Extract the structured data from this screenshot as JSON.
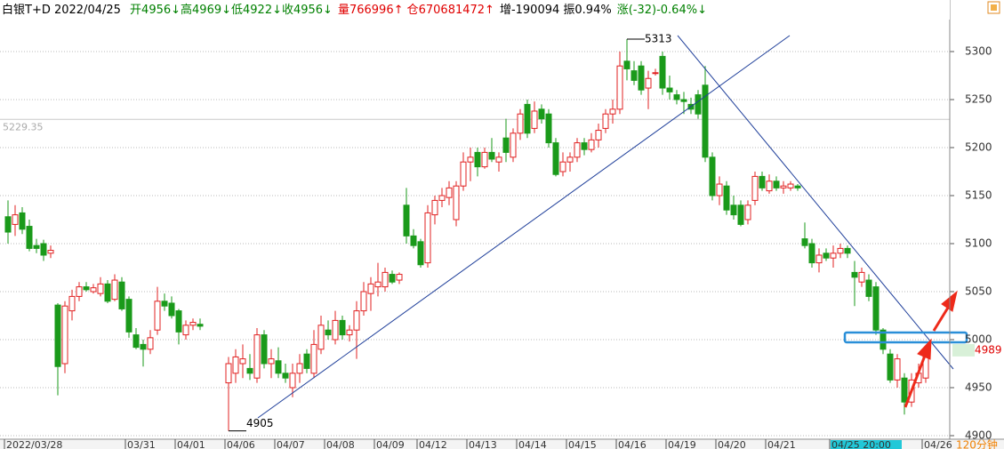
{
  "chart_data": {
    "type": "candlestick",
    "title": "白银T+D 2022/04/25",
    "info": [
      {
        "text": "开4956↓高4969↓低4922↓收4956↓",
        "color": "#008000"
      },
      {
        "text": "量766996↑ 仓670681472↑",
        "color": "#e00000"
      },
      {
        "text": "增-190094 振0.94%",
        "color": "#000000"
      },
      {
        "text": "涨(-32)-0.64%↓",
        "color": "#008000"
      }
    ],
    "period": "120分钟",
    "up_color": "#e02020",
    "down_color": "#1a9a1a",
    "ylim": [
      4896.3,
      5353.7
    ],
    "yticks": [
      4900,
      4950,
      5000,
      5050,
      5100,
      5150,
      5200,
      5250,
      5300
    ],
    "grid": true,
    "ref_line": 5229.35,
    "last_price": 4989,
    "extreme_labels": [
      5313,
      4905
    ],
    "categories": [
      "2022/03/28",
      null,
      null,
      null,
      null,
      null,
      null,
      null,
      null,
      null,
      null,
      null,
      null,
      null,
      null,
      null,
      null,
      "03/31",
      null,
      null,
      null,
      null,
      null,
      null,
      "04/01",
      null,
      null,
      null,
      null,
      null,
      null,
      "04/06",
      null,
      null,
      null,
      null,
      null,
      null,
      "04/07",
      null,
      null,
      null,
      null,
      null,
      null,
      "04/08",
      null,
      null,
      null,
      null,
      null,
      null,
      "04/09",
      null,
      null,
      null,
      null,
      null,
      "04/12",
      null,
      null,
      null,
      null,
      null,
      null,
      "04/13",
      null,
      null,
      null,
      null,
      null,
      null,
      "04/14",
      null,
      null,
      null,
      null,
      null,
      null,
      "04/15",
      null,
      null,
      null,
      null,
      null,
      null,
      "04/16",
      null,
      null,
      null,
      null,
      null,
      null,
      "04/19",
      null,
      null,
      null,
      null,
      null,
      null,
      "04/20",
      null,
      null,
      null,
      null,
      null,
      null,
      "04/21",
      null,
      null,
      null,
      null,
      null,
      null,
      null,
      null,
      "04/25 20:00",
      null,
      null,
      null,
      null,
      null,
      null,
      null,
      null,
      null,
      null,
      null,
      null,
      "04/26"
    ],
    "open": [
      5128,
      5120,
      5132,
      5118,
      5098,
      5100,
      5090,
      5036,
      4975,
      5030,
      5045,
      5055,
      5050,
      5048,
      5058,
      5042,
      5060,
      5042,
      5005,
      4995,
      4990,
      5010,
      5040,
      5038,
      5030,
      5005,
      5015,
      5016,
      null,
      null,
      null,
      4955,
      4965,
      4975,
      4970,
      4960,
      5005,
      4975,
      4978,
      4965,
      4950,
      4965,
      4985,
      4965,
      4990,
      5010,
      5000,
      5020,
      5005,
      5010,
      5030,
      5048,
      5055,
      5055,
      5068,
      5062,
      5140,
      5108,
      5102,
      5080,
      5130,
      5145,
      5148,
      5125,
      5160,
      5185,
      5195,
      5180,
      5195,
      5185,
      5210,
      5190,
      5215,
      5245,
      5220,
      5240,
      5235,
      5205,
      5175,
      5185,
      5190,
      5205,
      5198,
      5208,
      5220,
      5235,
      5240,
      5290,
      5280,
      5285,
      5262,
      5278,
      5295,
      5262,
      5255,
      5250,
      5245,
      5255,
      5265,
      5190,
      5150,
      5160,
      5140,
      5140,
      5125,
      5145,
      5170,
      5155,
      5165,
      5158,
      5158,
      5160,
      5105,
      5100,
      5080,
      5090,
      5085,
      5090,
      5095,
      5070,
      5060,
      5062,
      5055,
      5010,
      4985,
      4958,
      4960,
      4935,
      4955,
      4960
    ],
    "high": [
      5145,
      5140,
      5138,
      5125,
      5105,
      5104,
      5098,
      5038,
      5040,
      5052,
      5060,
      5060,
      5058,
      5065,
      5062,
      5068,
      5065,
      5045,
      5012,
      5000,
      5010,
      5055,
      5048,
      5045,
      5032,
      5020,
      5022,
      5022,
      null,
      null,
      null,
      4982,
      4990,
      4995,
      4985,
      5012,
      5010,
      4990,
      4992,
      4975,
      4975,
      4985,
      4990,
      5010,
      5025,
      5020,
      5030,
      5025,
      5015,
      5040,
      5060,
      5065,
      5080,
      5075,
      5072,
      5070,
      5158,
      5115,
      5105,
      5140,
      5150,
      5158,
      5165,
      5165,
      5195,
      5200,
      5200,
      5200,
      5210,
      5195,
      5230,
      5220,
      5240,
      5250,
      5248,
      5245,
      5240,
      5210,
      5195,
      5195,
      5210,
      5210,
      5215,
      5225,
      5240,
      5250,
      5300,
      5313,
      5290,
      5290,
      5280,
      5282,
      5300,
      5275,
      5260,
      5258,
      5252,
      5260,
      5285,
      5195,
      5170,
      5165,
      5150,
      5145,
      5145,
      5175,
      5175,
      5172,
      5170,
      5165,
      5165,
      5162,
      5122,
      5105,
      5095,
      5095,
      5098,
      5100,
      5098,
      5082,
      5075,
      5068,
      5060,
      5012,
      4990,
      4985,
      4965,
      4965,
      4975,
      4992
    ],
    "low": [
      5100,
      5108,
      5110,
      5092,
      5090,
      5082,
      5085,
      4942,
      4965,
      5020,
      5040,
      5050,
      5048,
      5045,
      5038,
      5040,
      5030,
      5002,
      4990,
      4972,
      4985,
      5005,
      5030,
      5022,
      4995,
      5000,
      5010,
      5010,
      null,
      null,
      null,
      4905,
      4955,
      4960,
      4958,
      4955,
      4970,
      4960,
      4960,
      4955,
      4940,
      4955,
      4965,
      4960,
      4985,
      5000,
      4995,
      5000,
      4998,
      4980,
      5025,
      5030,
      5045,
      5050,
      5058,
      5058,
      5100,
      5095,
      5075,
      5075,
      5120,
      5138,
      5140,
      5118,
      5155,
      5165,
      5170,
      5178,
      5185,
      5175,
      5185,
      5185,
      5208,
      5210,
      5215,
      5225,
      5200,
      5170,
      5170,
      5175,
      5185,
      5192,
      5195,
      5200,
      5215,
      5225,
      5235,
      5270,
      5265,
      5255,
      5240,
      5275,
      5255,
      5250,
      5245,
      5235,
      5235,
      5230,
      5185,
      5145,
      5140,
      5130,
      5125,
      5118,
      5120,
      5140,
      5155,
      5152,
      5155,
      5152,
      5155,
      5155,
      5095,
      5075,
      5070,
      5082,
      5075,
      5085,
      5085,
      5035,
      5055,
      5040,
      5005,
      4985,
      4955,
      4950,
      4922,
      4930,
      4950,
      4955
    ],
    "close": [
      5112,
      5130,
      5115,
      5095,
      5095,
      5088,
      5093,
      4972,
      5035,
      5045,
      5055,
      5052,
      5054,
      5058,
      5040,
      5062,
      5032,
      5008,
      4992,
      4990,
      5002,
      5040,
      5035,
      5025,
      5008,
      5015,
      5018,
      5014,
      null,
      null,
      null,
      4975,
      4982,
      4980,
      4965,
      5005,
      4975,
      4980,
      4965,
      4960,
      4965,
      4975,
      4970,
      4995,
      5015,
      5005,
      5020,
      5005,
      5010,
      5030,
      5050,
      5058,
      5060,
      5070,
      5060,
      5068,
      5108,
      5098,
      5078,
      5132,
      5145,
      5150,
      5158,
      5160,
      5185,
      5190,
      5180,
      5195,
      5188,
      5190,
      5195,
      5215,
      5235,
      5215,
      5238,
      5230,
      5205,
      5172,
      5185,
      5190,
      5205,
      5198,
      5208,
      5218,
      5235,
      5240,
      5285,
      5282,
      5270,
      5260,
      5272,
      5278,
      5262,
      5258,
      5250,
      5248,
      5240,
      5235,
      5190,
      5150,
      5162,
      5135,
      5130,
      5120,
      5140,
      5170,
      5158,
      5165,
      5158,
      5160,
      5162,
      5158,
      5098,
      5080,
      5088,
      5085,
      5090,
      5095,
      5090,
      5065,
      5070,
      5045,
      5010,
      4990,
      4958,
      4980,
      4935,
      4958,
      4965,
      4989
    ]
  }
}
